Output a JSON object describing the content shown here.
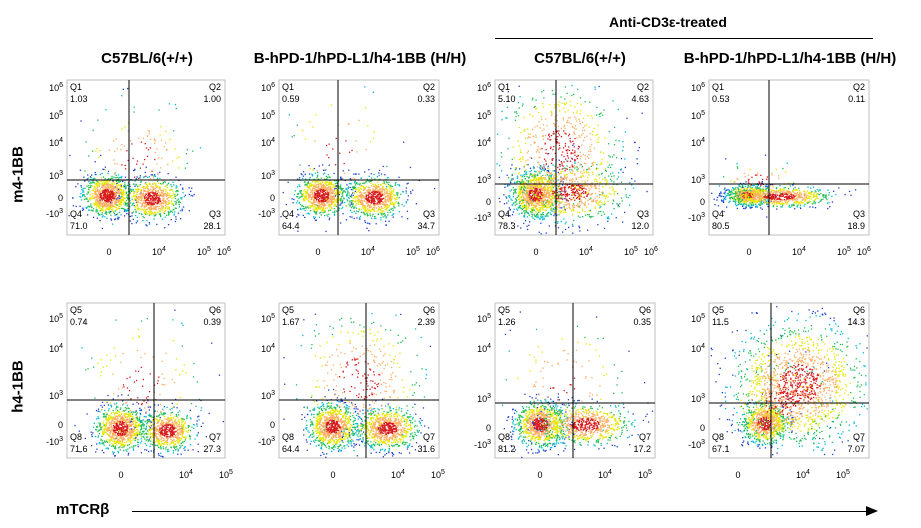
{
  "group_label": "Anti-CD3ε-treated",
  "columns": [
    "C57BL/6(+/+)",
    "B-hPD-1/hPD-L1/h4-1BB (H/H)",
    "C57BL/6(+/+)",
    "B-hPD-1/hPD-L1/h4-1BB (H/H)"
  ],
  "rows": [
    "m4-1BB",
    "h4-1BB"
  ],
  "x_axis_label": "mTCRβ",
  "chart_data": [
    {
      "type": "scatter",
      "row": "m4-1BB",
      "column": "C57BL/6(+/+)",
      "x_ticks": [
        "0",
        "10^4",
        "10^5",
        "10^6"
      ],
      "y_ticks": [
        "10^6",
        "10^5",
        "10^4",
        "10^3",
        "0",
        "-10^3"
      ],
      "quadrants": [
        {
          "label": "Q1",
          "value": "1.03"
        },
        {
          "label": "Q2",
          "value": "1.00"
        },
        {
          "label": "Q4",
          "value": "71.0"
        },
        {
          "label": "Q3",
          "value": "28.1"
        }
      ]
    },
    {
      "type": "scatter",
      "row": "m4-1BB",
      "column": "B-hPD-1/hPD-L1/h4-1BB (H/H)",
      "x_ticks": [
        "0",
        "10^4",
        "10^5",
        "10^6"
      ],
      "y_ticks": [
        "10^6",
        "10^5",
        "10^4",
        "10^3",
        "0",
        "-10^3"
      ],
      "quadrants": [
        {
          "label": "Q1",
          "value": "0.59"
        },
        {
          "label": "Q2",
          "value": "0.33"
        },
        {
          "label": "Q4",
          "value": "64.4"
        },
        {
          "label": "Q3",
          "value": "34.7"
        }
      ]
    },
    {
      "type": "scatter",
      "row": "m4-1BB",
      "column": "C57BL/6(+/+)",
      "treatment": "Anti-CD3ε-treated",
      "x_ticks": [
        "0",
        "10^4",
        "10^5",
        "10^6"
      ],
      "y_ticks": [
        "10^6",
        "10^5",
        "10^4",
        "10^3",
        "0",
        "-10^3"
      ],
      "quadrants": [
        {
          "label": "Q1",
          "value": "5.10"
        },
        {
          "label": "Q2",
          "value": "4.63"
        },
        {
          "label": "Q4",
          "value": "78.3"
        },
        {
          "label": "Q3",
          "value": "12.0"
        }
      ]
    },
    {
      "type": "scatter",
      "row": "m4-1BB",
      "column": "B-hPD-1/hPD-L1/h4-1BB (H/H)",
      "treatment": "Anti-CD3ε-treated",
      "x_ticks": [
        "0",
        "10^4",
        "10^5",
        "10^6"
      ],
      "y_ticks": [
        "10^6",
        "10^5",
        "10^4",
        "10^3",
        "0",
        "-10^3"
      ],
      "quadrants": [
        {
          "label": "Q1",
          "value": "0.53"
        },
        {
          "label": "Q2",
          "value": "0.11"
        },
        {
          "label": "Q4",
          "value": "80.5"
        },
        {
          "label": "Q3",
          "value": "18.9"
        }
      ]
    },
    {
      "type": "scatter",
      "row": "h4-1BB",
      "column": "C57BL/6(+/+)",
      "x_ticks": [
        "0",
        "10^4",
        "10^5"
      ],
      "y_ticks": [
        "10^5",
        "10^4",
        "10^3",
        "0",
        "-10^3"
      ],
      "quadrants": [
        {
          "label": "Q5",
          "value": "0.74"
        },
        {
          "label": "Q6",
          "value": "0.39"
        },
        {
          "label": "Q8",
          "value": "71.6"
        },
        {
          "label": "Q7",
          "value": "27.3"
        }
      ]
    },
    {
      "type": "scatter",
      "row": "h4-1BB",
      "column": "B-hPD-1/hPD-L1/h4-1BB (H/H)",
      "x_ticks": [
        "0",
        "10^4",
        "10^5"
      ],
      "y_ticks": [
        "10^5",
        "10^4",
        "10^3",
        "0",
        "-10^3"
      ],
      "quadrants": [
        {
          "label": "Q5",
          "value": "1.67"
        },
        {
          "label": "Q6",
          "value": "2.39"
        },
        {
          "label": "Q8",
          "value": "64.4"
        },
        {
          "label": "Q7",
          "value": "31.6"
        }
      ]
    },
    {
      "type": "scatter",
      "row": "h4-1BB",
      "column": "C57BL/6(+/+)",
      "treatment": "Anti-CD3ε-treated",
      "x_ticks": [
        "0",
        "10^4",
        "10^5"
      ],
      "y_ticks": [
        "10^5",
        "10^4",
        "10^3",
        "0",
        "-10^3"
      ],
      "quadrants": [
        {
          "label": "Q5",
          "value": "1.26"
        },
        {
          "label": "Q6",
          "value": "0.35"
        },
        {
          "label": "Q8",
          "value": "81.2"
        },
        {
          "label": "Q7",
          "value": "17.2"
        }
      ]
    },
    {
      "type": "scatter",
      "row": "h4-1BB",
      "column": "B-hPD-1/hPD-L1/h4-1BB (H/H)",
      "treatment": "Anti-CD3ε-treated",
      "x_ticks": [
        "0",
        "10^4",
        "10^5"
      ],
      "y_ticks": [
        "10^5",
        "10^4",
        "10^3",
        "0",
        "-10^3"
      ],
      "quadrants": [
        {
          "label": "Q5",
          "value": "11.5"
        },
        {
          "label": "Q6",
          "value": "14.3"
        },
        {
          "label": "Q8",
          "value": "67.1"
        },
        {
          "label": "Q7",
          "value": "7.07"
        }
      ]
    }
  ]
}
